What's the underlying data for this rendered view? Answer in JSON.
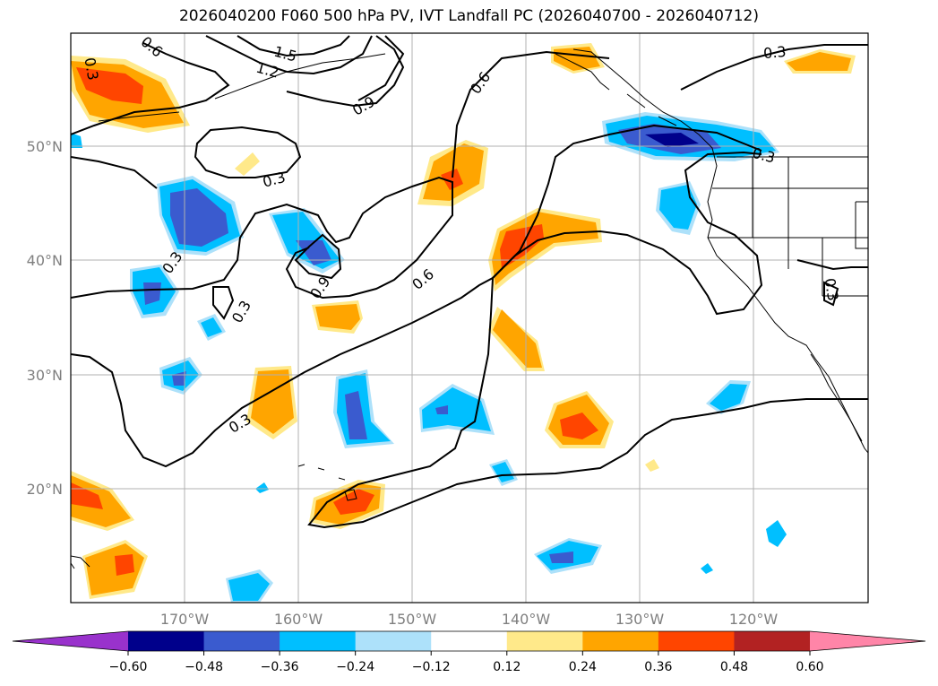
{
  "title": "2026040200 F060 500 hPa PV, IVT Landfall PC (2026040700 - 2026040712)",
  "axes": {
    "lon_labels": [
      "170°W",
      "160°W",
      "150°W",
      "140°W",
      "130°W",
      "120°W"
    ],
    "lat_labels": [
      "50°N",
      "40°N",
      "30°N",
      "20°N"
    ]
  },
  "contour_labels": [
    {
      "text": "0.3",
      "kind": "label-1"
    },
    {
      "text": "0.6",
      "kind": "label-2"
    },
    {
      "text": "1.5",
      "kind": "label-3"
    },
    {
      "text": "1.2",
      "kind": "label-4"
    },
    {
      "text": "0.9",
      "kind": "label-5"
    },
    {
      "text": "0.6",
      "kind": "label-6"
    },
    {
      "text": "0.3",
      "kind": "label-7"
    },
    {
      "text": "0.3",
      "kind": "label-8"
    },
    {
      "text": "0.3",
      "kind": "label-9"
    },
    {
      "text": "0.3",
      "kind": "label-10"
    },
    {
      "text": "0.9",
      "kind": "label-11"
    },
    {
      "text": "0.6",
      "kind": "label-12"
    },
    {
      "text": "0.3",
      "kind": "label-13"
    },
    {
      "text": "0.3",
      "kind": "label-14"
    },
    {
      "text": "0.3",
      "kind": "label-15"
    }
  ],
  "colorbar": {
    "ticks": [
      "−0.60",
      "−0.48",
      "−0.36",
      "−0.24",
      "−0.12",
      "0.12",
      "0.24",
      "0.36",
      "0.48",
      "0.60"
    ],
    "colors": [
      "#9932CC",
      "#00008B",
      "#3A5BCF",
      "#00BFFF",
      "#ADE1FA",
      "#FFFFFF",
      "#FFE98A",
      "#FFA500",
      "#FF4500",
      "#B22222",
      "#FF85A8"
    ]
  },
  "fill_colors": {
    "neg_light": "#ADE1FA",
    "neg_mid": "#00BFFF",
    "neg_strong": "#3A5BCF",
    "neg_max": "#00008B",
    "pos_light": "#FFE98A",
    "pos_mid": "#FFA500",
    "pos_strong": "#FF4500"
  }
}
